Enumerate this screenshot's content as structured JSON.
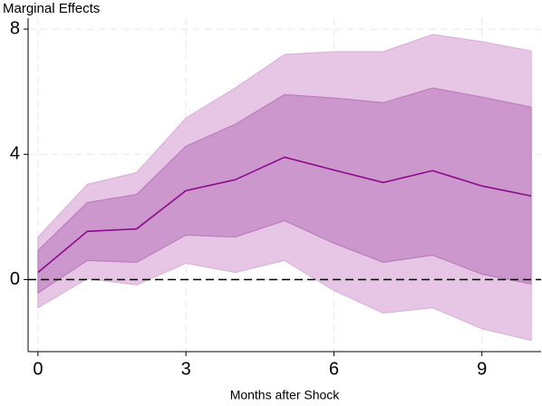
{
  "chart_data": {
    "type": "line-band",
    "ylabel": "Marginal Effects",
    "xlabel": "Months after Shock",
    "x": [
      0,
      1,
      2,
      3,
      4,
      5,
      6,
      7,
      8,
      9,
      10
    ],
    "series": [
      {
        "color": "#8b0a8b",
        "values": [
          0.23,
          1.54,
          1.62,
          2.84,
          3.19,
          3.91,
          3.5,
          3.1,
          3.48,
          2.99,
          2.67
        ]
      }
    ],
    "bands": [
      {
        "color": "#e6c6e4",
        "edge_color": "#d9acd8",
        "lower": [
          -0.9,
          0.03,
          -0.17,
          0.52,
          0.23,
          0.61,
          -0.35,
          -1.07,
          -0.9,
          -1.57,
          -1.94
        ],
        "upper": [
          1.36,
          3.04,
          3.42,
          5.16,
          6.12,
          7.19,
          7.28,
          7.28,
          7.83,
          7.6,
          7.3
        ]
      },
      {
        "color": "#cc97cd",
        "edge_color": "#b877b9",
        "lower": [
          -0.43,
          0.61,
          0.55,
          1.42,
          1.36,
          1.88,
          1.16,
          0.55,
          0.78,
          0.17,
          -0.14
        ],
        "upper": [
          0.93,
          2.46,
          2.72,
          4.26,
          4.96,
          5.91,
          5.8,
          5.65,
          6.12,
          5.83,
          5.51
        ]
      }
    ],
    "reference_line": 0,
    "xlim": [
      -0.2,
      10.2
    ],
    "ylim": [
      -2.3,
      8.35
    ],
    "xticks": [
      0,
      3,
      6,
      9
    ],
    "yticks": [
      0,
      4,
      8
    ],
    "grid": true
  }
}
